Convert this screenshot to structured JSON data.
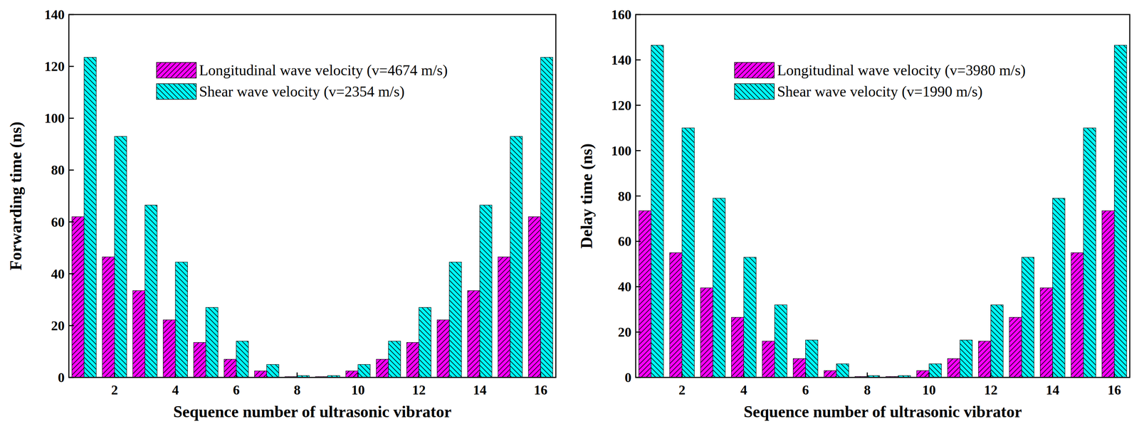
{
  "chart_data": [
    {
      "type": "bar",
      "x_label": "Sequence number of ultrasonic vibrator",
      "y_label": "Forwarding time (ns)",
      "x": [
        1,
        2,
        3,
        4,
        5,
        6,
        7,
        8,
        9,
        10,
        11,
        12,
        13,
        14,
        15,
        16
      ],
      "xlim": [
        0.5,
        16.5
      ],
      "xticks": [
        2,
        4,
        6,
        8,
        10,
        12,
        14,
        16
      ],
      "ylim": [
        0,
        140
      ],
      "yticks": [
        0,
        20,
        40,
        60,
        80,
        100,
        120,
        140
      ],
      "grid": false,
      "legend": "top right",
      "series": [
        {
          "name": "Longitudinal wave velocity (v=4674 m/s)",
          "color": "#ff00ff",
          "values": [
            62,
            46.5,
            33.5,
            22.2,
            13.5,
            7,
            2.5,
            0.3,
            0.3,
            2.5,
            7,
            13.5,
            22.2,
            33.5,
            46.5,
            62
          ]
        },
        {
          "name": "Shear wave velocity (v=2354 m/s)",
          "color": "#00ffff",
          "values": [
            123.5,
            93,
            66.5,
            44.5,
            27,
            14,
            5,
            0.7,
            0.7,
            5,
            14,
            27,
            44.5,
            66.5,
            93,
            123.5
          ]
        }
      ]
    },
    {
      "type": "bar",
      "x_label": "Sequence number of ultrasonic vibrator",
      "y_label": "Delay time (ns)",
      "x": [
        1,
        2,
        3,
        4,
        5,
        6,
        7,
        8,
        9,
        10,
        11,
        12,
        13,
        14,
        15,
        16
      ],
      "xlim": [
        0.5,
        16.5
      ],
      "xticks": [
        2,
        4,
        6,
        8,
        10,
        12,
        14,
        16
      ],
      "ylim": [
        0,
        160
      ],
      "yticks": [
        0,
        20,
        40,
        60,
        80,
        100,
        120,
        140,
        160
      ],
      "grid": false,
      "legend": "top right",
      "series": [
        {
          "name": "Longitudinal wave velocity (v=3980 m/s)",
          "color": "#ff00ff",
          "values": [
            73.5,
            55,
            39.5,
            26.5,
            16,
            8.3,
            3,
            0.4,
            0.4,
            3,
            8.3,
            16,
            26.5,
            39.5,
            55,
            73.5
          ]
        },
        {
          "name": "Shear wave velocity (v=1990 m/s)",
          "color": "#00ffff",
          "values": [
            146.5,
            110,
            79,
            53,
            32,
            16.5,
            6,
            0.8,
            0.8,
            6,
            16.5,
            32,
            53,
            79,
            110,
            146.5
          ]
        }
      ]
    }
  ]
}
